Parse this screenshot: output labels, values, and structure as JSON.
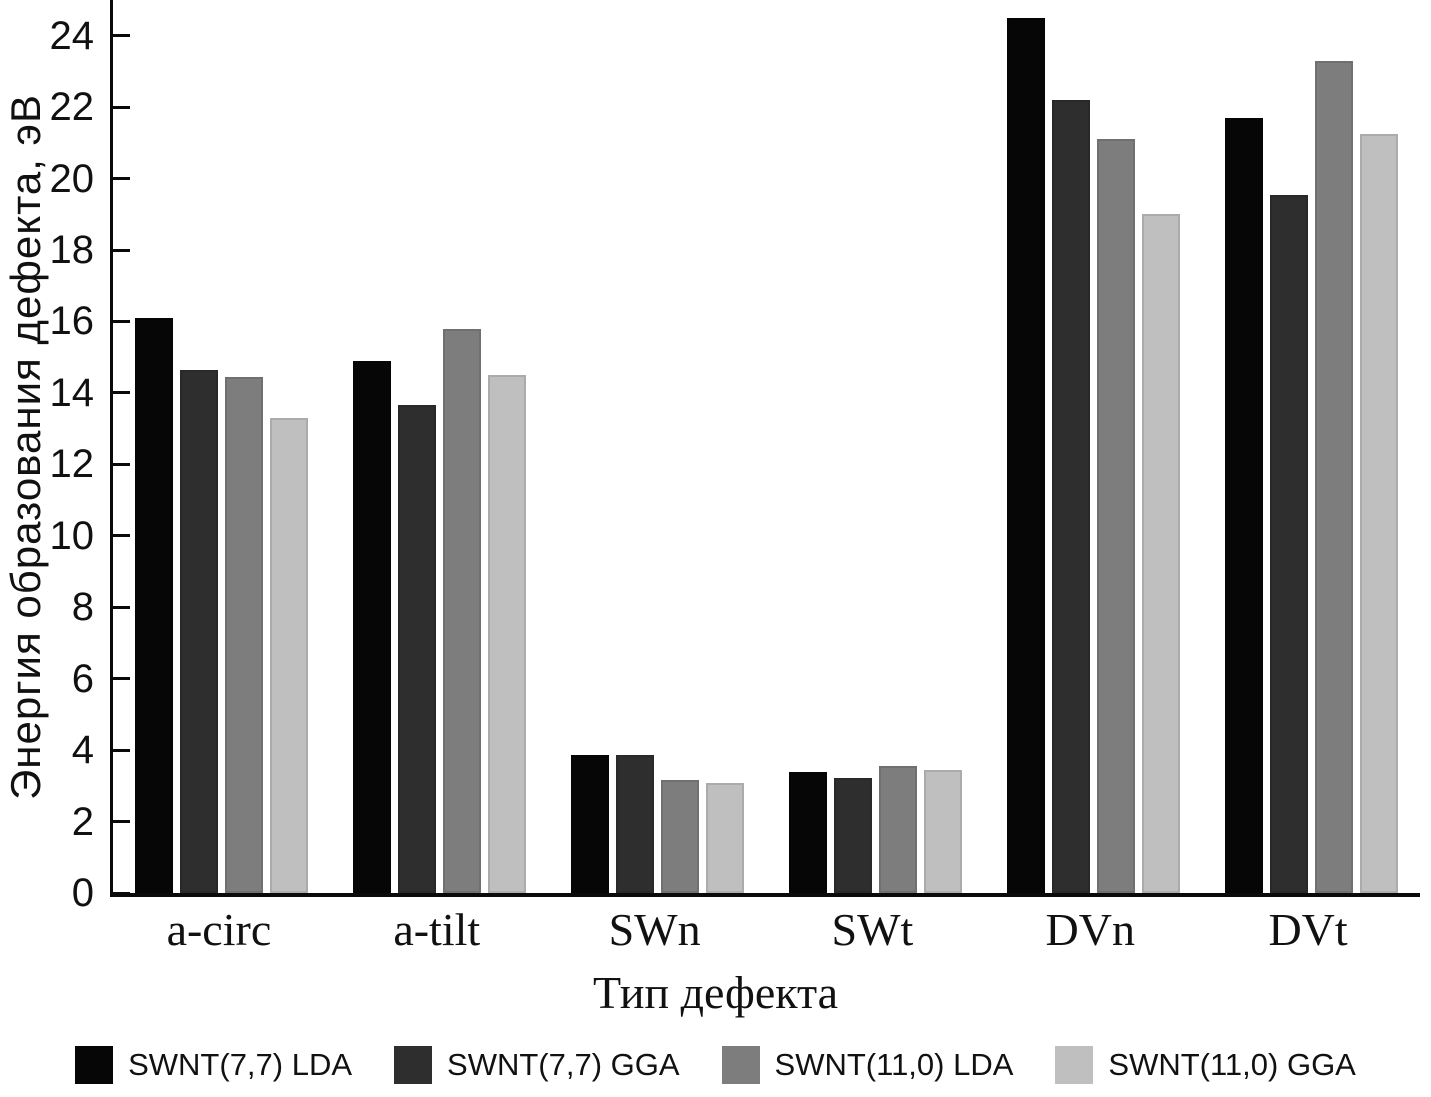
{
  "chart_data": {
    "type": "bar",
    "title": "",
    "xlabel": "Тип дефекта",
    "ylabel": "Энергия образования дефекта, эВ",
    "ylim": [
      0,
      25
    ],
    "yticks": [
      0,
      2,
      4,
      6,
      8,
      10,
      12,
      14,
      16,
      18,
      20,
      22,
      24
    ],
    "grid": false,
    "legend_position": "bottom",
    "categories": [
      "a-circ",
      "a-tilt",
      "SWn",
      "SWt",
      "DVn",
      "DVt"
    ],
    "series": [
      {
        "name": "SWNT(7,7) LDA",
        "color": "#060606",
        "values": [
          16.1,
          14.9,
          3.85,
          3.38,
          24.5,
          21.7
        ]
      },
      {
        "name": "SWNT(7,7) GGA",
        "color": "#2e2e2e",
        "values": [
          14.65,
          13.65,
          3.87,
          3.22,
          22.2,
          19.55
        ]
      },
      {
        "name": "SWNT(11,0) LDA",
        "color": "#7d7d7d",
        "values": [
          14.45,
          15.8,
          3.16,
          3.55,
          21.1,
          23.3
        ]
      },
      {
        "name": "SWNT(11,0) GGA",
        "color": "#bfbfbf",
        "values": [
          13.3,
          14.5,
          3.09,
          3.43,
          19.0,
          21.25
        ]
      }
    ]
  }
}
